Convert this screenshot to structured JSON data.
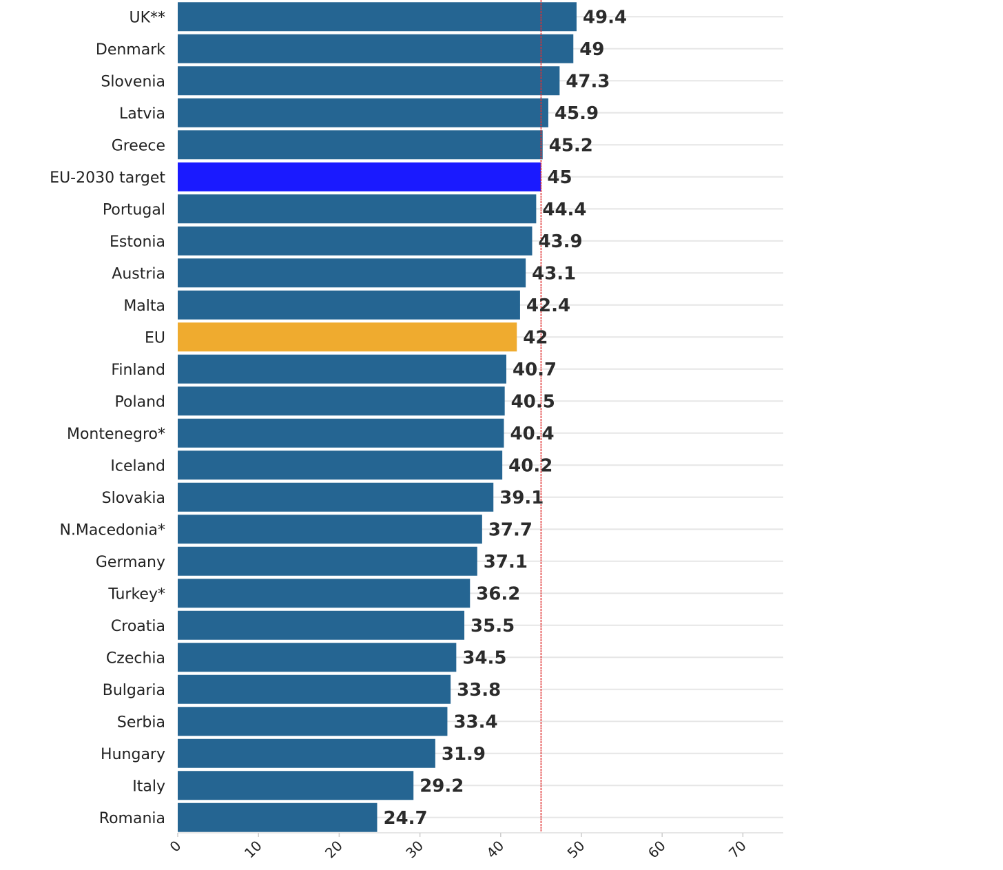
{
  "chart_data": {
    "type": "bar",
    "orientation": "horizontal",
    "categories": [
      "UK**",
      "Denmark",
      "Slovenia",
      "Latvia",
      "Greece",
      "EU-2030 target",
      "Portugal",
      "Estonia",
      "Austria",
      "Malta",
      "EU",
      "Finland",
      "Poland",
      "Montenegro*",
      "Iceland",
      "Slovakia",
      "N.Macedonia*",
      "Germany",
      "Turkey*",
      "Croatia",
      "Czechia",
      "Bulgaria",
      "Serbia",
      "Hungary",
      "Italy",
      "Romania"
    ],
    "values": [
      49.4,
      49,
      47.3,
      45.9,
      45.2,
      45,
      44.4,
      43.9,
      43.1,
      42.4,
      42,
      40.7,
      40.5,
      40.4,
      40.2,
      39.1,
      37.7,
      37.1,
      36.2,
      35.5,
      34.5,
      33.8,
      33.4,
      31.9,
      29.2,
      24.7
    ],
    "value_labels": [
      "49.4",
      "49",
      "47.3",
      "45.9",
      "45.2",
      "45",
      "44.4",
      "43.9",
      "43.1",
      "42.4",
      "42",
      "40.7",
      "40.5",
      "40.4",
      "40.2",
      "39.1",
      "37.7",
      "37.1",
      "36.2",
      "35.5",
      "34.5",
      "33.8",
      "33.4",
      "31.9",
      "29.2",
      "24.7"
    ],
    "x_ticks": [
      "0",
      "10",
      "20",
      "30",
      "40",
      "50",
      "60",
      "70"
    ],
    "xlim": [
      0,
      75
    ],
    "reference_line": {
      "value": 45,
      "color": "#e03030"
    },
    "colors": {
      "default": "#256592",
      "EU-2030 target": "#1a1aff",
      "EU": "#efab2f"
    },
    "grid": true,
    "title": "",
    "xlabel": "",
    "ylabel": ""
  }
}
